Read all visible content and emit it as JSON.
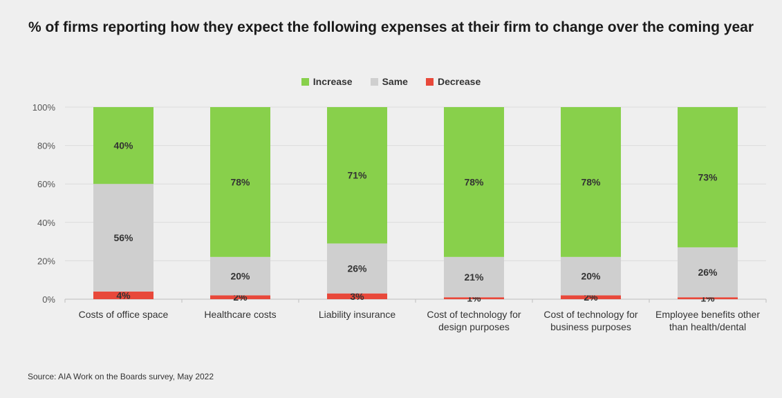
{
  "title": "% of firms reporting how they expect the following expenses at their firm to change over the coming year",
  "source": "Source: AIA Work on the Boards survey, May 2022",
  "legend": [
    {
      "label": "Increase",
      "color": "#88d04b"
    },
    {
      "label": "Same",
      "color": "#cfcfcf"
    },
    {
      "label": "Decrease",
      "color": "#e8483a"
    }
  ],
  "chart_data": {
    "type": "bar",
    "stacked": true,
    "categories": [
      [
        "Costs of office space"
      ],
      [
        "Healthcare costs"
      ],
      [
        "Liability insurance"
      ],
      [
        "Cost of technology for",
        "design purposes"
      ],
      [
        "Cost of technology for",
        "business purposes"
      ],
      [
        "Employee benefits other",
        "than health/dental"
      ]
    ],
    "series": [
      {
        "name": "Decrease",
        "color": "#e8483a",
        "values": [
          4,
          2,
          3,
          1,
          2,
          1
        ]
      },
      {
        "name": "Same",
        "color": "#cfcfcf",
        "values": [
          56,
          20,
          26,
          21,
          20,
          26
        ]
      },
      {
        "name": "Increase",
        "color": "#88d04b",
        "values": [
          40,
          78,
          71,
          78,
          78,
          73
        ]
      }
    ],
    "yticks": [
      "0%",
      "20%",
      "40%",
      "60%",
      "80%",
      "100%"
    ],
    "ylim": [
      0,
      100
    ],
    "grid": true,
    "legend_position": "top-center"
  }
}
